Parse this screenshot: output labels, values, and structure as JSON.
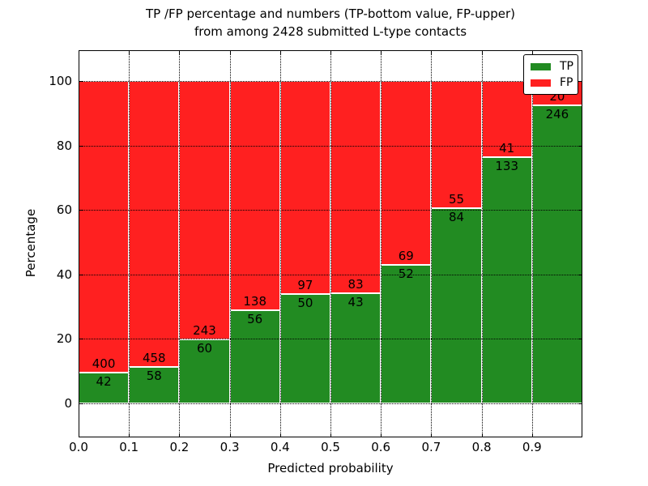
{
  "title": {
    "line1": "TP /FP percentage and numbers (TP-bottom value, FP-upper)",
    "line2": "from among 2428 submitted L-type contacts"
  },
  "legend": {
    "position": "upper right",
    "items": [
      {
        "label": "TP"
      },
      {
        "label": "FP"
      }
    ]
  },
  "chart_data": {
    "type": "bar",
    "subtype": "stacked-percentage",
    "title": "TP /FP percentage and numbers (TP-bottom value, FP-upper) from among 2428 submitted L-type contacts",
    "xlabel": "Predicted probability",
    "ylabel": "Percentage",
    "total_contacts": 2428,
    "grid": true,
    "xlim": [
      0.0,
      1.0
    ],
    "ylim": [
      -10,
      110
    ],
    "bin_width": 0.1,
    "bin_starts": [
      0.0,
      0.1,
      0.2,
      0.3,
      0.4,
      0.5,
      0.6,
      0.7,
      0.8,
      0.9
    ],
    "xticks": [
      "0.0",
      "0.1",
      "0.2",
      "0.3",
      "0.4",
      "0.5",
      "0.6",
      "0.7",
      "0.8",
      "0.9"
    ],
    "yticks": [
      0,
      20,
      40,
      60,
      80,
      100
    ],
    "series": [
      {
        "name": "TP",
        "color": "#228B22",
        "counts": [
          42,
          58,
          60,
          56,
          50,
          43,
          52,
          84,
          133,
          246
        ]
      },
      {
        "name": "FP",
        "color": "#FF2020",
        "counts": [
          400,
          458,
          243,
          138,
          97,
          83,
          69,
          55,
          41,
          20
        ]
      }
    ],
    "tp_percent": [
      9.5,
      11.24,
      19.8,
      28.87,
      34.01,
      34.13,
      42.98,
      60.43,
      76.44,
      92.48
    ]
  }
}
